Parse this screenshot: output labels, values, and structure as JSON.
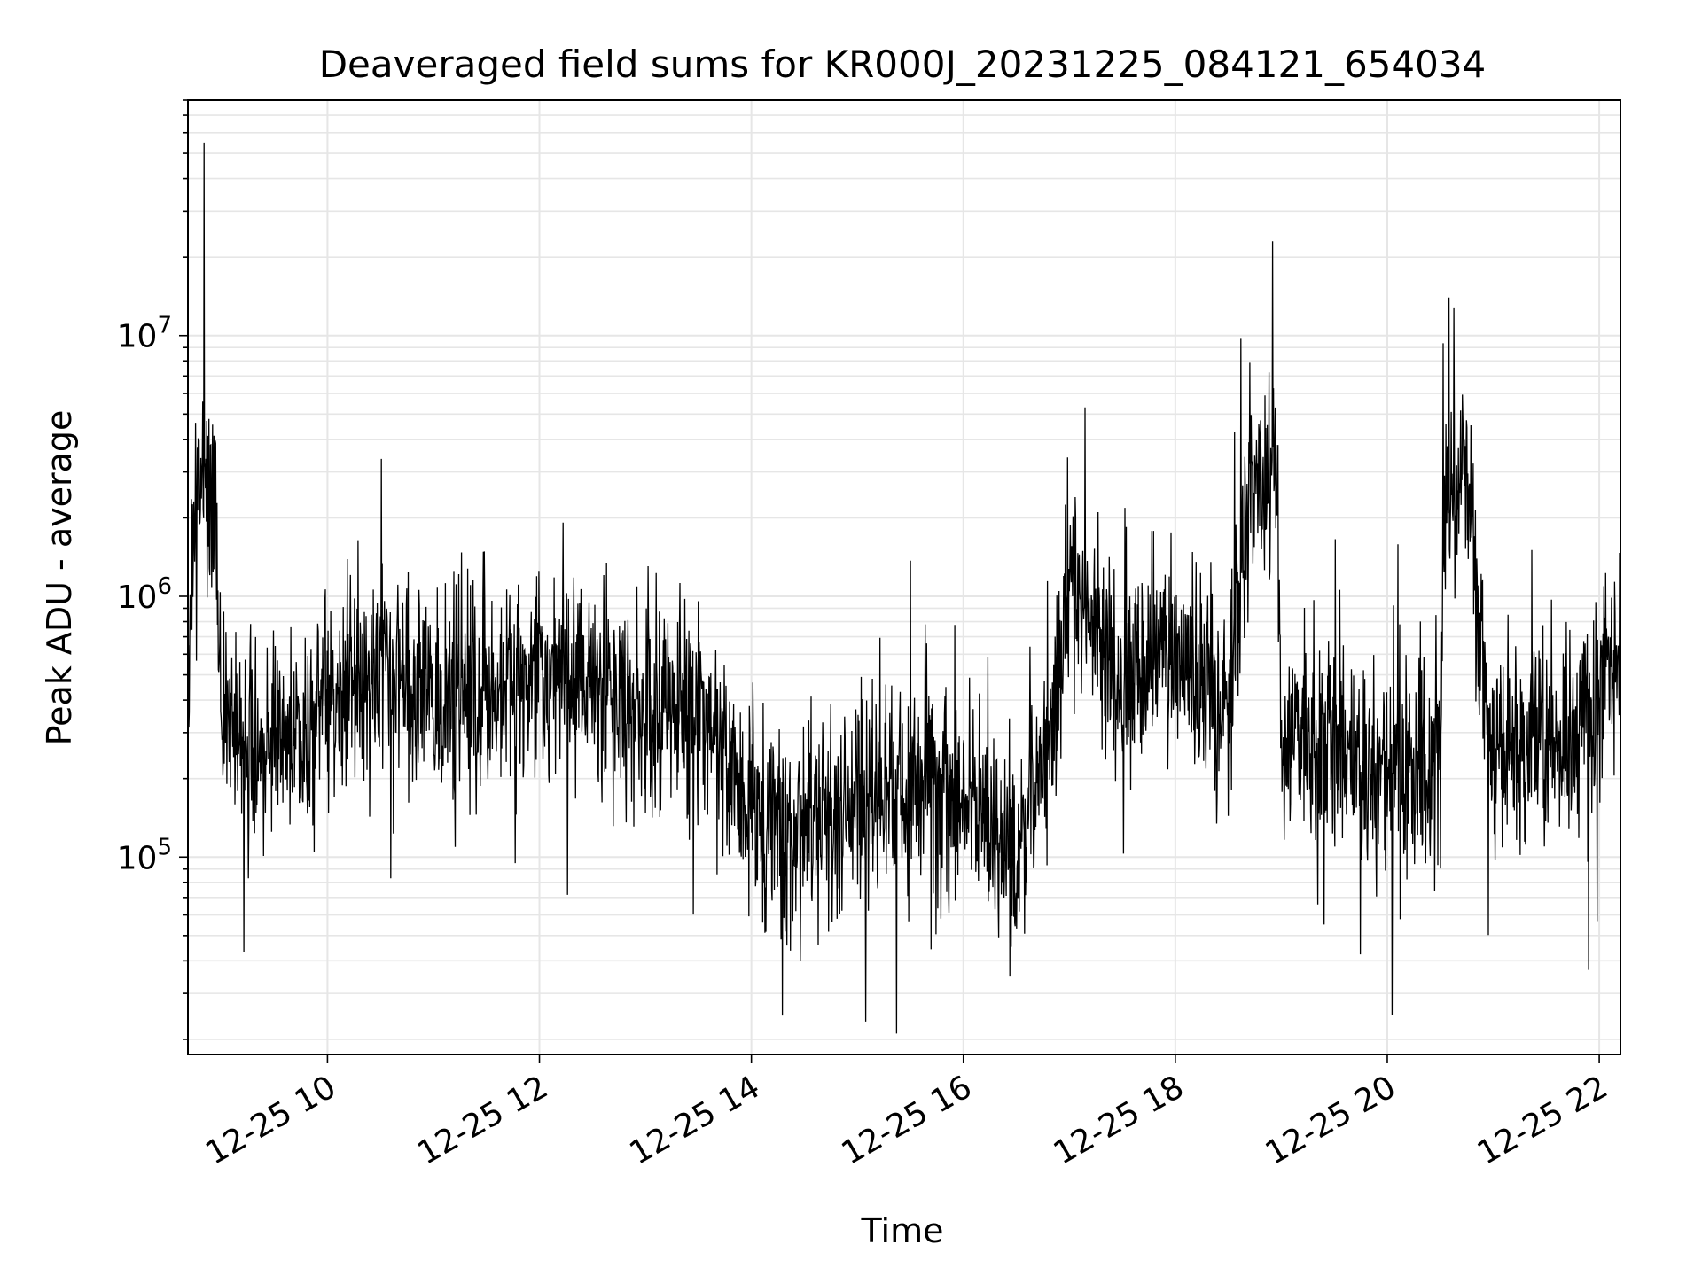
{
  "chart_data": {
    "type": "line",
    "title": "Deaveraged field sums for KR000J_20231225_084121_654034",
    "xlabel": "Time",
    "ylabel": "Peak ADU - average",
    "x_tick_labels": [
      "12-25 10",
      "12-25 12",
      "12-25 14",
      "12-25 16",
      "12-25 18",
      "12-25 20",
      "12-25 22"
    ],
    "x_ticks": [
      "2023-12-25 10:00",
      "2023-12-25 12:00",
      "2023-12-25 14:00",
      "2023-12-25 16:00",
      "2023-12-25 18:00",
      "2023-12-25 20:00",
      "2023-12-25 22:00"
    ],
    "y_tick_labels": [
      {
        "base": "10",
        "exp": "5",
        "value": 100000
      },
      {
        "base": "10",
        "exp": "6",
        "value": 1000000
      },
      {
        "base": "10",
        "exp": "7",
        "value": 10000000
      }
    ],
    "xlim": [
      "2023-12-25 08:41",
      "2023-12-25 22:12"
    ],
    "ylim": [
      17500,
      80000000
    ],
    "yscale": "log",
    "grid": true,
    "colors": {
      "line": "#000000",
      "grid": "#e6e6e6",
      "axes": "#000000"
    },
    "series": [
      {
        "x": [
          "2023-12-25 08:41",
          "2023-12-25 08:45",
          "2023-12-25 08:50",
          "2023-12-25 09:00",
          "2023-12-25 09:15",
          "2023-12-25 09:30",
          "2023-12-25 09:45",
          "2023-12-25 10:00",
          "2023-12-25 10:30",
          "2023-12-25 11:00",
          "2023-12-25 11:30",
          "2023-12-25 12:00",
          "2023-12-25 12:30",
          "2023-12-25 13:00",
          "2023-12-25 13:30",
          "2023-12-25 14:00",
          "2023-12-25 14:30",
          "2023-12-25 15:00",
          "2023-12-25 15:30",
          "2023-12-25 16:00",
          "2023-12-25 16:30",
          "2023-12-25 16:50",
          "2023-12-25 17:00",
          "2023-12-25 17:30",
          "2023-12-25 18:00",
          "2023-12-25 18:30",
          "2023-12-25 18:55",
          "2023-12-25 19:00",
          "2023-12-25 19:30",
          "2023-12-25 20:00",
          "2023-12-25 20:30",
          "2023-12-25 20:35",
          "2023-12-25 21:00",
          "2023-12-25 21:30",
          "2023-12-25 21:55",
          "2023-12-25 22:12"
        ],
        "y": [
          400000,
          2000000,
          55000000,
          350000,
          300000,
          250000,
          280000,
          400000,
          500000,
          450000,
          400000,
          550000,
          450000,
          350000,
          400000,
          150000,
          120000,
          150000,
          200000,
          180000,
          100000,
          300000,
          1200000,
          500000,
          600000,
          400000,
          23000000,
          300000,
          280000,
          230000,
          220000,
          14000000,
          230000,
          280000,
          350000,
          700000
        ]
      }
    ]
  }
}
